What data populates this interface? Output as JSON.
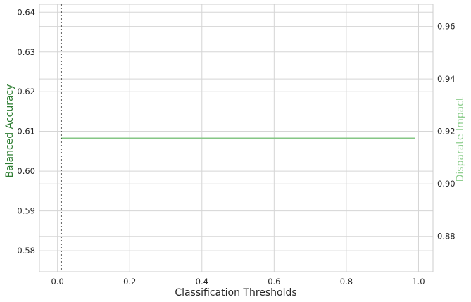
{
  "chart_data": {
    "type": "line",
    "xlabel": "Classification Thresholds",
    "ylabel_left": "Balanced Accuracy",
    "ylabel_right": "Disparate Impact",
    "xlim": [
      -0.05,
      1.04
    ],
    "ylim_left": [
      0.5747,
      0.642
    ],
    "ylim_right": [
      0.8665,
      0.9685
    ],
    "x_ticks": [
      "0.0",
      "0.2",
      "0.4",
      "0.6",
      "0.8",
      "1.0"
    ],
    "x_tick_values": [
      0.0,
      0.2,
      0.4,
      0.6,
      0.8,
      1.0
    ],
    "y_ticks_left": [
      "0.58",
      "0.59",
      "0.60",
      "0.61",
      "0.62",
      "0.63",
      "0.64"
    ],
    "y_tick_values_left": [
      0.58,
      0.59,
      0.6,
      0.61,
      0.62,
      0.63,
      0.64
    ],
    "y_ticks_right": [
      "0.88",
      "0.90",
      "0.92",
      "0.94",
      "0.96"
    ],
    "y_tick_values_right": [
      0.88,
      0.9,
      0.92,
      0.94,
      0.96
    ],
    "grid": true,
    "series": [
      {
        "axis": "left",
        "color": "#86c786",
        "x": [
          0.01,
          0.99
        ],
        "values": [
          0.6083,
          0.6083
        ]
      }
    ],
    "vline": {
      "x": 0.01,
      "color": "#000000",
      "style": "dotted"
    },
    "colors": {
      "left_label": "#2e7d32",
      "right_label": "#90cf90",
      "grid": "#d5d5d5",
      "spine": "#cccccc"
    }
  }
}
